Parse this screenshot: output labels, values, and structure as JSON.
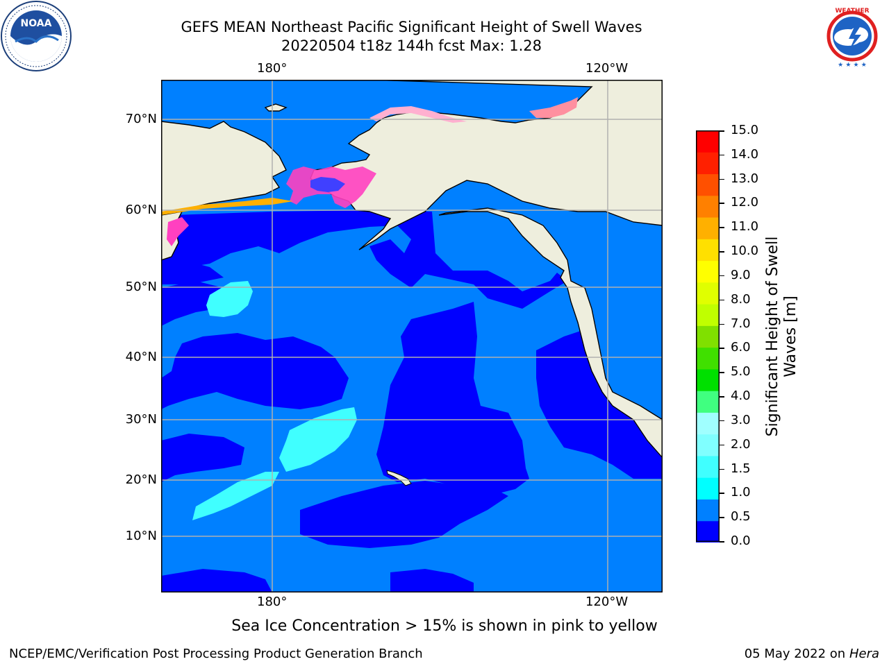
{
  "header": {
    "title_line1": "GEFS MEAN Northeast Pacific Significant Height of Swell Waves",
    "title_line2": "20220504 t18z 144h fcst   Max: 1.28"
  },
  "logos": {
    "left": {
      "name": "NOAA",
      "ring_text": "NATIONAL OCEANIC AND ATMOSPHERIC ADMINISTRATION · U.S. DEPARTMENT OF COMMERCE"
    },
    "right": {
      "name": "NATIONAL WEATHER SERVICE"
    }
  },
  "map": {
    "region": "Northeast Pacific",
    "lon_labels": [
      "180°",
      "120°W"
    ],
    "lat_labels": [
      "70°N",
      "60°N",
      "50°N",
      "40°N",
      "30°N",
      "20°N",
      "10°N"
    ],
    "colors": {
      "ocean_dark": "#0000ff",
      "ocean_mid": "#0080ff",
      "swell_cyan": "#00ffff",
      "swell_light_cyan": "#40ffff",
      "land": "#eeeedd",
      "ice": "#ff40c0",
      "grid": "#b0b0b0"
    }
  },
  "colorbar": {
    "title_line1": "Significant Height of Swell",
    "title_line2": "Waves [m]",
    "ticks": [
      "15.0",
      "14.0",
      "13.0",
      "12.0",
      "11.0",
      "10.0",
      "9.0",
      "8.0",
      "7.0",
      "6.0",
      "5.0",
      "4.0",
      "3.0",
      "2.0",
      "1.5",
      "1.0",
      "0.5",
      "0.0"
    ],
    "colors": [
      "#0000ff",
      "#0080ff",
      "#00ffff",
      "#40ffff",
      "#80ffff",
      "#a0ffff",
      "#40ff80",
      "#00e000",
      "#40e000",
      "#80e000",
      "#c0ff00",
      "#e0ff00",
      "#ffff00",
      "#ffe000",
      "#ffb000",
      "#ff8000",
      "#ff5000",
      "#ff2000",
      "#ff0000"
    ]
  },
  "caption": "Sea Ice Concentration > 15% is shown in pink to yellow",
  "footer": {
    "left": "NCEP/EMC/Verification Post Processing Product Generation Branch",
    "right_date": "05 May 2022 on",
    "right_host": "Hera"
  }
}
